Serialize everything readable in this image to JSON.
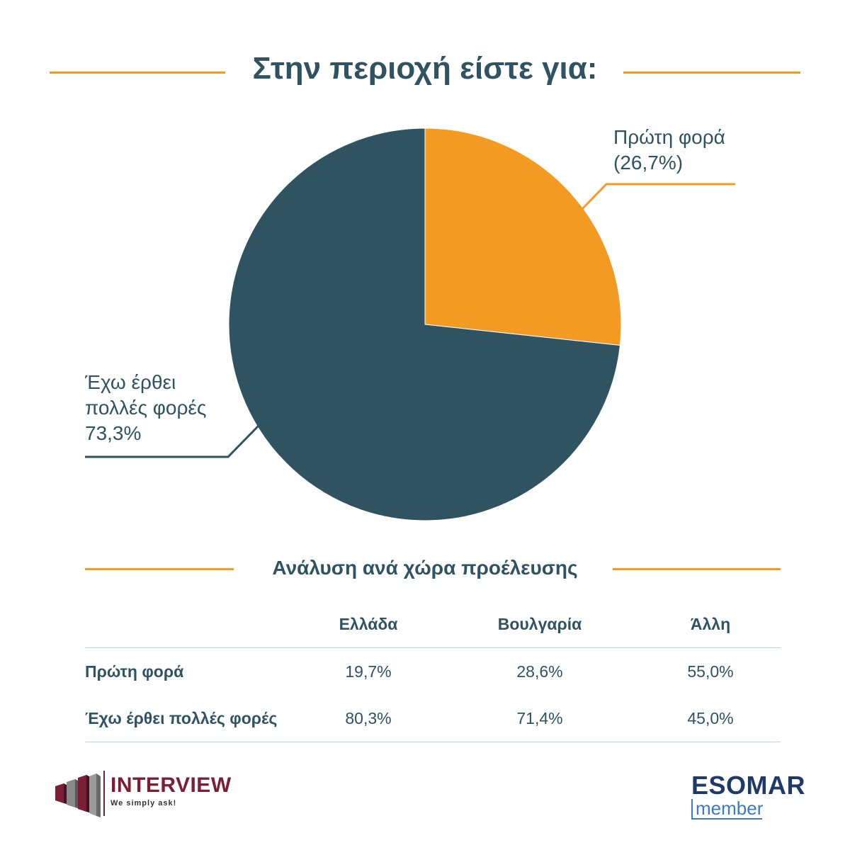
{
  "header": {
    "title": "Στην περιοχή είστε για:"
  },
  "chart_data": {
    "type": "pie",
    "title": "Στην περιοχή είστε για:",
    "series": [
      {
        "name": "Πρώτη φορά",
        "value": 26.7,
        "label": "(26,7%)",
        "color": "#f39a22"
      },
      {
        "name": "Έχω έρθει πολλές φορές",
        "value": 73.3,
        "label": "73,3%",
        "color": "#2f5361"
      }
    ],
    "labels": {
      "first_line1": "Πρώτη φορά",
      "first_line2": "(26,7%)",
      "many_line1": "Έχω έρθει",
      "many_line2": "πολλές φορές",
      "many_line3": "73,3%"
    },
    "accent_color": "#f39a22"
  },
  "breakdown": {
    "title": "Ανάλυση ανά χώρα προέλευσης",
    "columns": [
      "",
      "Ελλάδα",
      "Βουλγαρία",
      "Άλλη"
    ],
    "rows": [
      {
        "label": "Πρώτη φορά",
        "values": [
          "19,7%",
          "28,6%",
          "55,0%"
        ]
      },
      {
        "label": "Έχω έρθει πολλές φορές",
        "values": [
          "80,3%",
          "71,4%",
          "45,0%"
        ]
      }
    ]
  },
  "footer": {
    "interview_logo": {
      "name": "INTERVIEW",
      "tagline": "We simply ask!"
    },
    "esomar_logo": {
      "name": "ESOMAR",
      "sub": "member"
    }
  }
}
